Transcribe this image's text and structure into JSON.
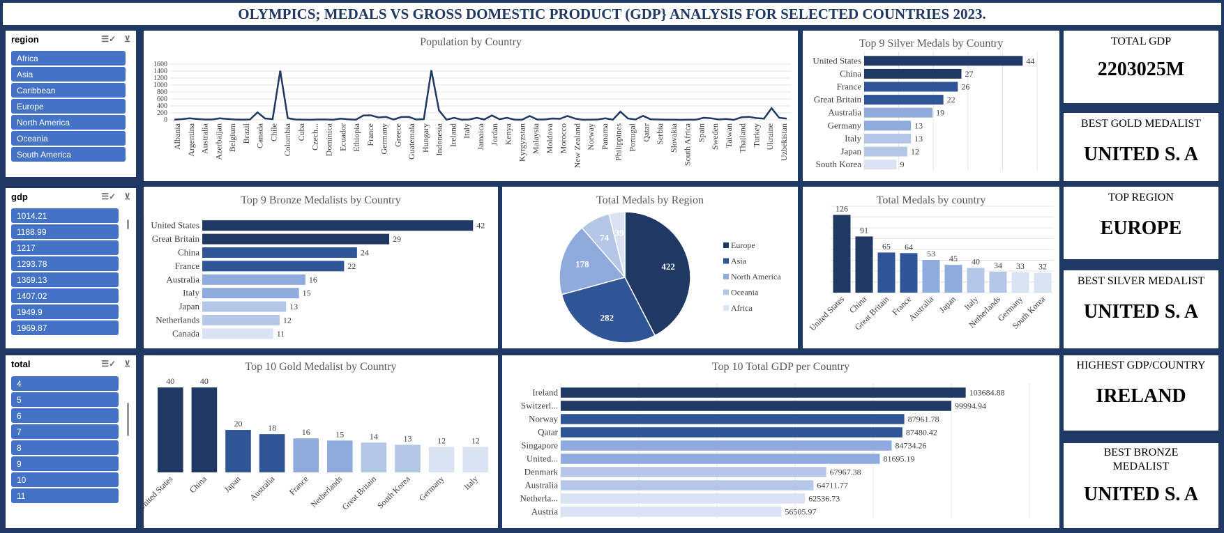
{
  "title": "OLYMPICS; MEDALS VS GROSS DOMESTIC PRODUCT (GDP} ANALYSIS FOR SELECTED COUNTRIES 2023.",
  "colors": {
    "dark": "#1f3864",
    "mid": "#2f5597",
    "light": "#8faadc",
    "lighter": "#b4c7e7",
    "lightest": "#dae3f3",
    "slicer": "#4472c4"
  },
  "slicers": {
    "region": {
      "label": "region",
      "items": [
        "Africa",
        "Asia",
        "Caribbean",
        "Europe",
        "North America",
        "Oceania",
        "South America"
      ]
    },
    "gdp": {
      "label": "gdp",
      "items": [
        "1014.21",
        "1188.99",
        "1217",
        "1293.78",
        "1369.13",
        "1407.02",
        "1949.9",
        "1969.87"
      ]
    },
    "total": {
      "label": "total",
      "items": [
        "4",
        "5",
        "6",
        "7",
        "8",
        "9",
        "10",
        "11"
      ]
    }
  },
  "icons": {
    "multiselect": "multi-select-icon",
    "clear": "clear-filter-icon"
  },
  "kpis": [
    {
      "label": "TOTAL GDP",
      "value": "2203025M"
    },
    {
      "label": "BEST GOLD MEDALIST",
      "value": "UNITED S. A"
    },
    {
      "label": "TOP REGION",
      "value": "EUROPE"
    },
    {
      "label": "BEST SILVER MEDALIST",
      "value": "UNITED S. A"
    },
    {
      "label": "HIGHEST GDP/COUNTRY",
      "value": "IRELAND"
    },
    {
      "label": "BEST BRONZE MEDALIST",
      "value": "UNITED S. A"
    }
  ],
  "chart_data": [
    {
      "id": "population",
      "type": "line",
      "title": "Population by Country",
      "ylim": [
        0,
        1600
      ],
      "yticks": [
        0,
        200,
        400,
        600,
        800,
        1000,
        1200,
        1400,
        1600
      ],
      "x_labels": [
        "Albania",
        "Argentina",
        "Australia",
        "Azerbaijan",
        "Belgium",
        "Brazil",
        "Canada",
        "Chile",
        "Colombia",
        "Cuba",
        "Czech...",
        "Dominica",
        "Ecuador",
        "Ethiopia",
        "France",
        "Germany",
        "Greece",
        "Guatemala",
        "Hungary",
        "Indonesia",
        "Ireland",
        "Italy",
        "Jamaica",
        "Jordan",
        "Kenya",
        "Kyrgyzstan",
        "Malaysia",
        "Moldova",
        "Morocco",
        "New Zealand",
        "Norway",
        "Panama",
        "Philippines",
        "Portugal",
        "Qatar",
        "Serbia",
        "Slovakia",
        "South Africa",
        "Spain",
        "Sweden",
        "Taiwan",
        "Thailand",
        "Turkey",
        "Ukraine",
        "Uzbekistan"
      ],
      "values": [
        3,
        20,
        46,
        26,
        10,
        10,
        45,
        26,
        9,
        4,
        10,
        215,
        38,
        19,
        1412,
        50,
        11,
        4,
        2,
        10,
        11,
        2,
        33,
        17,
        5,
        125,
        130,
        68,
        84,
        10,
        80,
        83,
        10,
        18,
        1425,
        275,
        5,
        59,
        3,
        11,
        59,
        10,
        127,
        18,
        60,
        6,
        5,
        110,
        10,
        9,
        41,
        31,
        110,
        37,
        2,
        6,
        9,
        44,
        5,
        233,
        38,
        11,
        115,
        17,
        10,
        3,
        7,
        0.3,
        7,
        3,
        60,
        46,
        10,
        24,
        1,
        72,
        86,
        49,
        37,
        333,
        60,
        35
      ]
    },
    {
      "id": "silver",
      "type": "bar",
      "orientation": "horizontal",
      "title": "Top 9 Silver Medals by Country",
      "categories": [
        "United States",
        "China",
        "France",
        "Great Britain",
        "Australia",
        "Germany",
        "Italy",
        "Japan",
        "South Korea"
      ],
      "values": [
        44,
        27,
        26,
        22,
        19,
        13,
        13,
        12,
        9
      ],
      "xlim": [
        0,
        48
      ]
    },
    {
      "id": "bronze",
      "type": "bar",
      "orientation": "horizontal",
      "title": "Top 9 Bronze Medalists by Country",
      "categories": [
        "United States",
        "Great Britain",
        "China",
        "France",
        "Australia",
        "Italy",
        "Japan",
        "Netherlands",
        "Canada"
      ],
      "values": [
        42,
        29,
        24,
        22,
        16,
        15,
        13,
        12,
        11
      ],
      "xlim": [
        0,
        45
      ]
    },
    {
      "id": "region_pie",
      "type": "pie",
      "title": "Total Medals by Region",
      "categories": [
        "Europe",
        "Asia",
        "North America",
        "Oceania",
        "Africa"
      ],
      "values": [
        422,
        282,
        178,
        74,
        39
      ]
    },
    {
      "id": "total_medals",
      "type": "bar",
      "orientation": "vertical",
      "title": "Total Medals by country",
      "categories": [
        "United States",
        "China",
        "Great Britain",
        "France",
        "Australia",
        "Japan",
        "Italy",
        "Netherlands",
        "Germany",
        "South Korea"
      ],
      "values": [
        126,
        91,
        65,
        64,
        53,
        45,
        40,
        34,
        33,
        32
      ],
      "ylim": [
        0,
        140
      ]
    },
    {
      "id": "gold",
      "type": "bar",
      "orientation": "vertical",
      "title": "Top 10 Gold Medalist by Country",
      "categories": [
        "United States",
        "China",
        "Japan",
        "Australia",
        "France",
        "Netherlands",
        "Great Britain",
        "South Korea",
        "Germany",
        "Italy"
      ],
      "values": [
        40,
        40,
        20,
        18,
        16,
        15,
        14,
        13,
        12,
        12
      ],
      "ylim": [
        0,
        42
      ]
    },
    {
      "id": "gdp_top",
      "type": "bar",
      "orientation": "horizontal",
      "title": "Top 10 Total GDP per Country",
      "categories": [
        "Ireland",
        "Switzerl...",
        "Norway",
        "Qatar",
        "Singapore",
        "United...",
        "Denmark",
        "Australia",
        "Netherla...",
        "Austria"
      ],
      "values": [
        103684.88,
        99994.94,
        87961.78,
        87480.42,
        84734.26,
        81695.19,
        67967.38,
        64711.77,
        62536.73,
        56505.97
      ],
      "value_labels": [
        "103684.88",
        "99994.94",
        "87961.78",
        "87480.42",
        "84734.26",
        "81695.19",
        "67967.38",
        "64711.77",
        "62536.73",
        "56505.97"
      ],
      "xlim": [
        0,
        120000
      ]
    }
  ]
}
